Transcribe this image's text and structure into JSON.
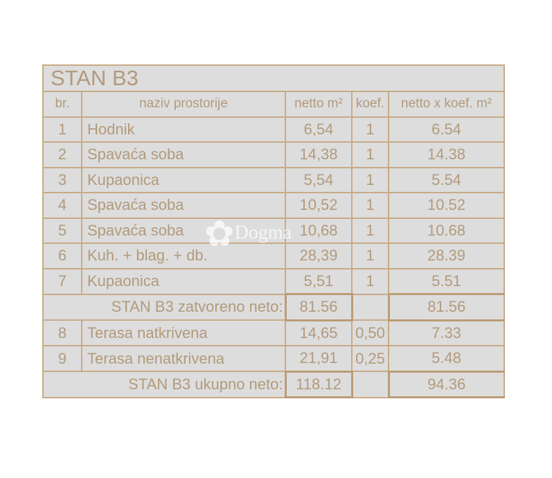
{
  "title": "STAN B3",
  "headers": {
    "no": "br.",
    "name": "naziv prostorije",
    "netto": "netto m²",
    "koef": "koef.",
    "result": "netto x koef. m²"
  },
  "rows": [
    {
      "no": "1",
      "name": "Hodnik",
      "netto": "6,54",
      "koef": "1",
      "result": "6.54"
    },
    {
      "no": "2",
      "name": "Spavaća soba",
      "netto": "14,38",
      "koef": "1",
      "result": "14.38"
    },
    {
      "no": "3",
      "name": "Kupaonica",
      "netto": "5,54",
      "koef": "1",
      "result": "5.54"
    },
    {
      "no": "4",
      "name": "Spavaća soba",
      "netto": "10,52",
      "koef": "1",
      "result": "10.52"
    },
    {
      "no": "5",
      "name": "Spavaća soba",
      "netto": "10,68",
      "koef": "1",
      "result": "10.68"
    },
    {
      "no": "6",
      "name": "Kuh. + blag. + db.",
      "netto": "28,39",
      "koef": "1",
      "result": "28.39"
    },
    {
      "no": "7",
      "name": "Kupaonica",
      "netto": "5,51",
      "koef": "1",
      "result": "5.51"
    },
    {
      "no": "8",
      "name": "Terasa natkrivena",
      "netto": "14,65",
      "koef": "0,50",
      "result": "7.33"
    },
    {
      "no": "9",
      "name": "Terasa nenatkrivena",
      "netto": "21,91",
      "koef": "0,25",
      "result": "5.48"
    }
  ],
  "closed_total": {
    "label": "STAN B3 zatvoreno neto:",
    "netto": "81.56",
    "result": "81.56"
  },
  "grand_total": {
    "label": "STAN B3 ukupno neto:",
    "netto": "118.12",
    "result": "94.36"
  },
  "watermark": "Dogma",
  "colors": {
    "text": "#b39a7c",
    "border": "#c8aa86",
    "background": "#dddddd"
  }
}
